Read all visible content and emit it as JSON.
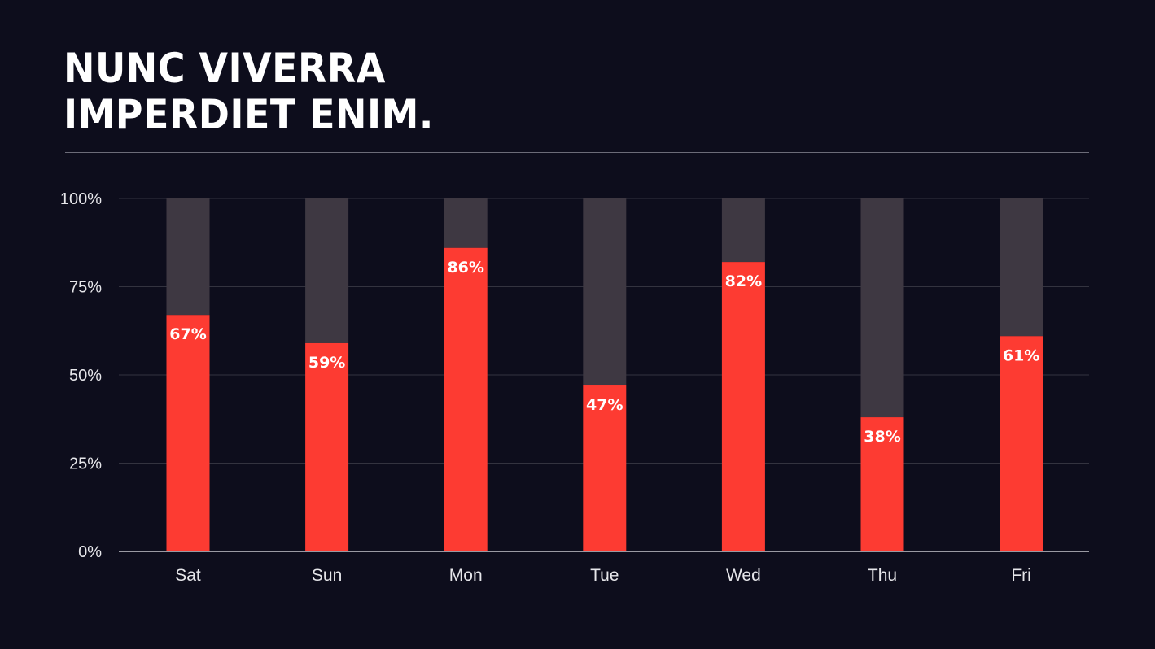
{
  "title_lines": [
    "NUNC VIVERRA",
    "IMPERDIET ENIM."
  ],
  "colors": {
    "background": "#0d0d1c",
    "value_bar": "#fd3b32",
    "remainder_bar": "#3e3842",
    "gridline": "#33333f",
    "axis": "#c8c8cf",
    "text": "#ffffff"
  },
  "chart_data": {
    "type": "bar",
    "stacked_to": 100,
    "categories": [
      "Sat",
      "Sun",
      "Mon",
      "Tue",
      "Wed",
      "Thu",
      "Fri"
    ],
    "values": [
      67,
      59,
      86,
      47,
      82,
      38,
      61
    ],
    "data_labels": [
      "67%",
      "59%",
      "86%",
      "47%",
      "82%",
      "38%",
      "61%"
    ],
    "ylim": [
      0,
      100
    ],
    "yticks": [
      0,
      25,
      50,
      75,
      100
    ],
    "ytick_labels": [
      "0%",
      "25%",
      "50%",
      "75%",
      "100%"
    ],
    "grid": true,
    "xlabel": "",
    "ylabel": ""
  }
}
